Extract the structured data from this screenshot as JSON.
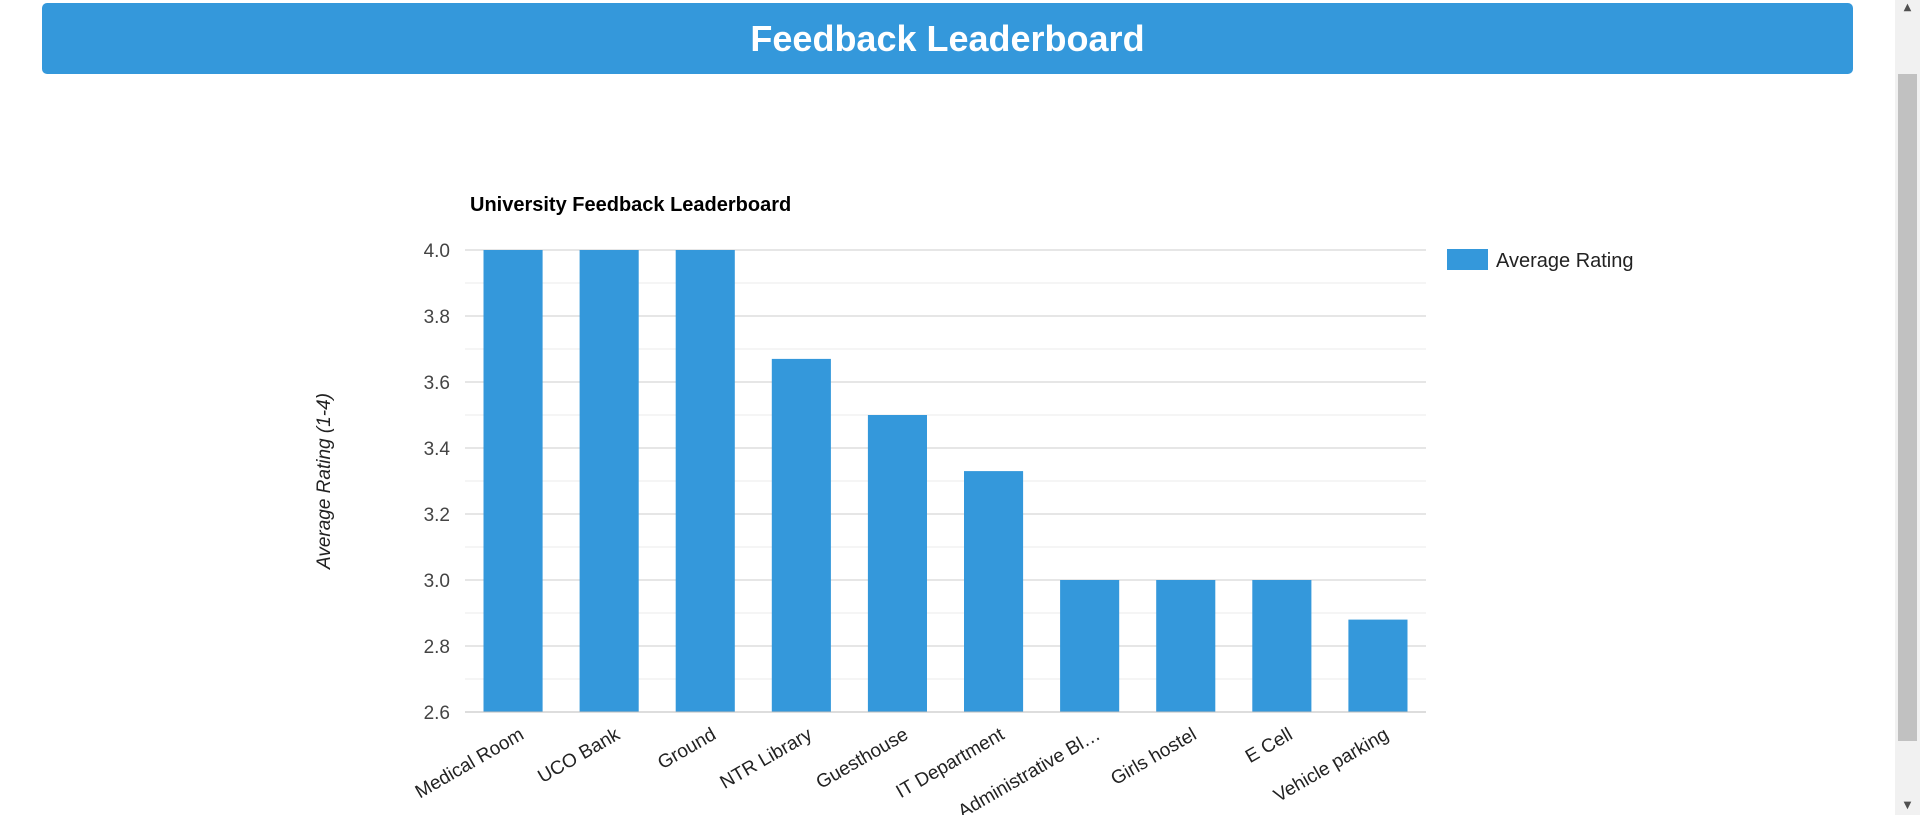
{
  "header": {
    "title": "Feedback Leaderboard"
  },
  "colors": {
    "header_bg": "#3498db",
    "bar": "#3498db",
    "grid_major": "#cccccc",
    "grid_minor": "#ebebeb",
    "text": "#222222"
  },
  "chart_data": {
    "type": "bar",
    "title": "University Feedback Leaderboard",
    "ylabel": "Average Rating (1-4)",
    "xlabel": "",
    "categories": [
      "Medical Room",
      "UCO Bank",
      "Ground",
      "NTR Library",
      "Guesthouse",
      "IT Department",
      "Administrative Bl…",
      "Girls hostel",
      "E Cell",
      "Vehicle parking"
    ],
    "series": [
      {
        "name": "Average Rating",
        "values": [
          4.0,
          4.0,
          4.0,
          3.67,
          3.5,
          3.33,
          3.0,
          3.0,
          3.0,
          2.88
        ]
      }
    ],
    "ylim": [
      2.6,
      4.0
    ],
    "yticks": [
      "4.0",
      "3.8",
      "3.6",
      "3.4",
      "3.2",
      "3.0",
      "2.8",
      "2.6"
    ],
    "grid": true,
    "legend_position": "right"
  },
  "scrollbar": {
    "up_icon": "scroll-up-arrow-icon",
    "down_icon": "scroll-down-arrow-icon"
  }
}
